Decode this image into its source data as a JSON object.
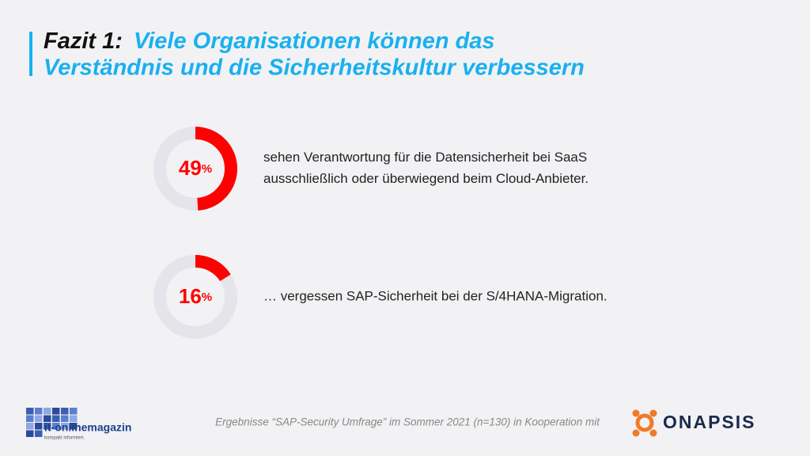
{
  "header": {
    "title_prefix": "Fazit 1:",
    "title_lines": [
      "Viele Organisationen können das",
      "Verständnis und die Sicherheitskultur verbessern"
    ]
  },
  "chart_data": [
    {
      "type": "donut",
      "value": 49,
      "value_label": "49%",
      "ylim": [
        0,
        100
      ],
      "color": "#ff0000",
      "track_color": "#e4e4ea",
      "caption_lines": [
        "sehen Verantwortung für die Datensicherheit bei SaaS",
        "ausschließlich oder überwiegend beim Cloud-Anbieter."
      ]
    },
    {
      "type": "donut",
      "value": 16,
      "value_label": "16%",
      "ylim": [
        0,
        100
      ],
      "color": "#ff0000",
      "track_color": "#e4e4ea",
      "caption_lines": [
        "… vergessen SAP-Sicherheit bei der S/4HANA-Migration."
      ]
    }
  ],
  "footer": {
    "source": "Ergebnisse “SAP-Security Umfrage” im Sommer 2021 (n=130) in Kooperation mit",
    "logo_left": {
      "name": "it-onlinemagazin",
      "tagline": "kompakt informiert."
    },
    "logo_right": "ONAPSIS"
  }
}
